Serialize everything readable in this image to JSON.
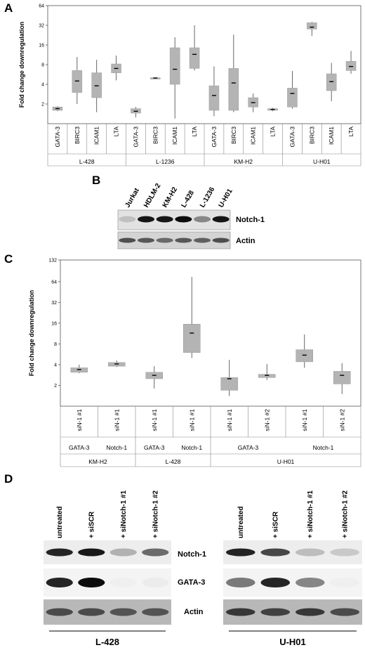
{
  "panels": {
    "a": "A",
    "b": "B",
    "c": "C",
    "d": "D"
  },
  "chart_data": [
    {
      "type": "box",
      "ylabel": "Fold change downregulation",
      "yscale": "log2",
      "yticks": [
        2,
        4,
        8,
        16,
        32,
        64
      ],
      "ylim": [
        1,
        64
      ],
      "categories": [
        "GATA-3",
        "BIRC3",
        "ICAM1",
        "LTA",
        "GATA-3",
        "BIRC3",
        "ICAM1",
        "LTA",
        "GATA-3",
        "BIRC3",
        "ICAM1",
        "LTA",
        "GATA-3",
        "BIRC3",
        "ICAM1",
        "LTA"
      ],
      "groups": [
        {
          "name": "L-428",
          "span": 4
        },
        {
          "name": "L-1236",
          "span": 4
        },
        {
          "name": "KM-H2",
          "span": 4
        },
        {
          "name": "U-H01",
          "span": 4
        }
      ],
      "boxes": [
        {
          "min": 1.55,
          "q1": 1.6,
          "median": 1.7,
          "q3": 1.8,
          "max": 1.85
        },
        {
          "min": 2.0,
          "q1": 3.0,
          "median": 4.5,
          "q3": 6.5,
          "max": 10.5
        },
        {
          "min": 1.5,
          "q1": 2.5,
          "median": 3.8,
          "q3": 6.0,
          "max": 9.5
        },
        {
          "min": 4.6,
          "q1": 6.0,
          "median": 7.0,
          "q3": 8.2,
          "max": 11.0
        },
        {
          "min": 1.25,
          "q1": 1.45,
          "median": 1.55,
          "q3": 1.7,
          "max": 1.8
        },
        {
          "min": 4.9,
          "q1": 4.95,
          "median": 5.0,
          "q3": 5.05,
          "max": 5.1
        },
        {
          "min": 1.2,
          "q1": 4.0,
          "median": 6.8,
          "q3": 14.5,
          "max": 21.0
        },
        {
          "min": 6.5,
          "q1": 7.0,
          "median": 11.5,
          "q3": 14.5,
          "max": 32.0
        },
        {
          "min": 1.3,
          "q1": 1.6,
          "median": 2.7,
          "q3": 3.8,
          "max": 7.5
        },
        {
          "min": 1.5,
          "q1": 1.6,
          "median": 4.2,
          "q3": 7.0,
          "max": 23.0
        },
        {
          "min": 1.5,
          "q1": 1.8,
          "median": 2.1,
          "q3": 2.5,
          "max": 2.9
        },
        {
          "min": 1.55,
          "q1": 1.6,
          "median": 1.65,
          "q3": 1.7,
          "max": 1.75
        },
        {
          "min": 1.7,
          "q1": 1.8,
          "median": 2.9,
          "q3": 3.5,
          "max": 6.4
        },
        {
          "min": 22.0,
          "q1": 28.0,
          "median": 30.0,
          "q3": 35.0,
          "max": 36.0
        },
        {
          "min": 2.2,
          "q1": 3.2,
          "median": 4.4,
          "q3": 5.8,
          "max": 8.5
        },
        {
          "min": 5.8,
          "q1": 6.5,
          "median": 7.5,
          "q3": 9.0,
          "max": 13.0
        }
      ]
    },
    {
      "type": "box",
      "ylabel": "Fold change downregulation",
      "yscale": "log2",
      "yticks": [
        2,
        4,
        8,
        16,
        32,
        64,
        132
      ],
      "ylim": [
        1,
        132
      ],
      "categories": [
        "siN-1 #1",
        "siN-1 #1",
        "siN-1 #1",
        "siN-1 #1",
        "siN-1 #1",
        "siN-1 #2",
        "siN-1 #1",
        "siN-1 #2"
      ],
      "subgroups": [
        {
          "name": "GATA-3",
          "span": 1
        },
        {
          "name": "Notch-1",
          "span": 1
        },
        {
          "name": "GATA-3",
          "span": 1
        },
        {
          "name": "Notch-1",
          "span": 1
        },
        {
          "name": "GATA-3",
          "span": 2
        },
        {
          "name": "Notch-1",
          "span": 2
        }
      ],
      "groups": [
        {
          "name": "KM-H2",
          "span": 2
        },
        {
          "name": "L-428",
          "span": 2
        },
        {
          "name": "U-H01",
          "span": 4
        }
      ],
      "boxes": [
        {
          "min": 3.0,
          "q1": 3.1,
          "median": 3.4,
          "q3": 3.6,
          "max": 4.0
        },
        {
          "min": 3.7,
          "q1": 3.8,
          "median": 4.1,
          "q3": 4.3,
          "max": 4.6
        },
        {
          "min": 1.8,
          "q1": 2.5,
          "median": 2.8,
          "q3": 3.1,
          "max": 3.8
        },
        {
          "min": 5.0,
          "q1": 6.0,
          "median": 11.5,
          "q3": 15.5,
          "max": 75.0
        },
        {
          "min": 1.4,
          "q1": 1.7,
          "median": 2.5,
          "q3": 2.6,
          "max": 4.7
        },
        {
          "min": 2.4,
          "q1": 2.6,
          "median": 2.8,
          "q3": 2.9,
          "max": 4.1
        },
        {
          "min": 3.6,
          "q1": 4.4,
          "median": 5.5,
          "q3": 6.6,
          "max": 11.0
        },
        {
          "min": 1.5,
          "q1": 2.1,
          "median": 2.8,
          "q3": 3.2,
          "max": 4.2
        }
      ]
    }
  ],
  "blot_b": {
    "lanes": [
      "Jurkat",
      "HDLM-2",
      "KM-H2",
      "L-428",
      "L-1236",
      "U-H01"
    ],
    "rows": [
      "Notch-1",
      "Actin"
    ]
  },
  "blot_d": {
    "lanes": [
      "untreated",
      "+ siSCR",
      "+ siNotch-1 #1",
      "+ siNotch-1 #2"
    ],
    "rows": [
      "Notch-1",
      "GATA-3",
      "Actin"
    ],
    "cells": [
      "L-428",
      "U-H01"
    ]
  }
}
